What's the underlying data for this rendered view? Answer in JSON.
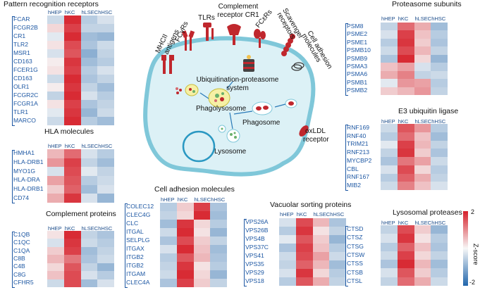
{
  "columns": [
    "hHEP",
    "hKC",
    "hLSEC",
    "hHSC"
  ],
  "panels": [
    {
      "id": "prr",
      "title": "Pattern recognition receptors",
      "genes": [
        "FCAR",
        "FCGR2B",
        "CR1",
        "TLR2",
        "MSR1",
        "CD163",
        "FCER1G",
        "CD163",
        "OLR1",
        "FCGR2C",
        "FCGR1A",
        "TLR1",
        "MARCO"
      ],
      "values": [
        [
          -0.4,
          1.9,
          -0.6,
          -0.3
        ],
        [
          0.3,
          1.7,
          -0.5,
          -0.5
        ],
        [
          -0.2,
          1.9,
          -0.8,
          -0.9
        ],
        [
          0.2,
          1.6,
          -0.7,
          -0.4
        ],
        [
          -0.3,
          1.5,
          -1.0,
          -0.5
        ],
        [
          0.1,
          1.8,
          -0.8,
          -0.6
        ],
        [
          0.2,
          1.7,
          -0.6,
          -0.3
        ],
        [
          -0.4,
          1.9,
          -0.7,
          -0.5
        ],
        [
          0.1,
          1.8,
          -0.5,
          -0.8
        ],
        [
          -0.5,
          1.9,
          -0.3,
          -0.6
        ],
        [
          0.2,
          1.7,
          -0.7,
          -0.5
        ],
        [
          -0.2,
          1.8,
          -0.9,
          -0.4
        ],
        [
          -0.4,
          1.9,
          -0.6,
          -0.8
        ]
      ]
    },
    {
      "id": "hla",
      "title": "HLA molecules",
      "genes": [
        "HMHA1",
        "HLA-DRB1",
        "MYO1G",
        "HLA-DRA",
        "HLA-DRB1",
        "CD74"
      ],
      "values": [
        [
          0.6,
          1.3,
          -0.3,
          -0.6
        ],
        [
          0.9,
          1.7,
          -0.5,
          -0.8
        ],
        [
          -0.3,
          1.6,
          -0.2,
          -0.5
        ],
        [
          0.8,
          1.5,
          -0.6,
          -0.4
        ],
        [
          0.4,
          1.4,
          -0.8,
          -0.3
        ],
        [
          0.7,
          1.8,
          -0.3,
          -0.9
        ]
      ]
    },
    {
      "id": "comp",
      "title": "Complement proteins",
      "genes": [
        "C1QB",
        "C1QC",
        "C1QA",
        "C8B",
        "C4B",
        "C8G",
        "CFHR5"
      ],
      "values": [
        [
          0.2,
          1.9,
          -0.5,
          -0.7
        ],
        [
          -0.3,
          1.8,
          -0.4,
          -0.6
        ],
        [
          0.4,
          1.7,
          -0.8,
          -0.5
        ],
        [
          0.6,
          1.2,
          -0.7,
          -0.4
        ],
        [
          0.3,
          1.5,
          -0.5,
          -0.9
        ],
        [
          0.5,
          1.6,
          -0.3,
          -0.6
        ],
        [
          -0.4,
          1.6,
          -0.8,
          -0.3
        ]
      ]
    },
    {
      "id": "adh",
      "title": "Cell adhesion molecules",
      "genes": [
        "COLEC12",
        "CLEC4G",
        "CLC",
        "ITGAL",
        "SELPLG",
        "ITGAX",
        "ITGB2",
        "ITGB2",
        "ITGAM",
        "CLEC4A"
      ],
      "values": [
        [
          -0.6,
          0.4,
          1.7,
          -0.7
        ],
        [
          -0.5,
          0.3,
          1.9,
          -0.8
        ],
        [
          -0.8,
          1.8,
          0.3,
          -0.6
        ],
        [
          -0.4,
          1.9,
          0.2,
          -0.9
        ],
        [
          -0.7,
          1.6,
          0.4,
          -0.5
        ],
        [
          -0.3,
          1.9,
          0.5,
          -0.8
        ],
        [
          -0.6,
          1.5,
          0.6,
          -0.7
        ],
        [
          -0.5,
          1.8,
          0.2,
          -0.6
        ],
        [
          -0.4,
          1.9,
          0.3,
          -0.9
        ],
        [
          -0.7,
          1.7,
          0.4,
          -0.5
        ]
      ]
    },
    {
      "id": "vps",
      "title": "Vacuolar sorting proteins",
      "genes": [
        "VPS26A",
        "VPS26B",
        "VPS4B",
        "VPS37C",
        "VPS41",
        "VPS35",
        "VPS29",
        "VPS18"
      ],
      "values": [
        [
          -0.3,
          1.6,
          0.6,
          -0.7
        ],
        [
          -0.6,
          1.8,
          0.2,
          -0.5
        ],
        [
          -0.2,
          1.5,
          0.4,
          -0.9
        ],
        [
          -0.7,
          1.7,
          0.5,
          -0.6
        ],
        [
          -0.4,
          1.6,
          0.8,
          -0.4
        ],
        [
          -0.5,
          1.4,
          0.6,
          -0.8
        ],
        [
          -0.3,
          1.8,
          0.3,
          -0.6
        ],
        [
          -0.6,
          1.5,
          0.7,
          -0.5
        ]
      ]
    },
    {
      "id": "prot",
      "title": "Proteasome subunits",
      "genes": [
        "PSM8",
        "PSME2",
        "PSME1",
        "PSMB10",
        "PSMB9",
        "PSMA3",
        "PSMA6",
        "PSMB1",
        "PSMB2"
      ],
      "values": [
        [
          -0.5,
          1.3,
          0.7,
          -0.8
        ],
        [
          -0.3,
          1.7,
          0.5,
          -0.6
        ],
        [
          -0.6,
          1.8,
          0.4,
          -0.7
        ],
        [
          -0.4,
          1.6,
          0.6,
          -0.5
        ],
        [
          -0.7,
          1.9,
          0.3,
          -0.9
        ],
        [
          0.5,
          0.8,
          -0.3,
          -0.6
        ],
        [
          0.7,
          1.1,
          -0.5,
          -0.4
        ],
        [
          -0.2,
          0.9,
          0.8,
          -0.6
        ],
        [
          0.4,
          0.6,
          0.9,
          -0.5
        ]
      ]
    },
    {
      "id": "e3",
      "title": "E3 ubiquitin ligase",
      "genes": [
        "RNF169",
        "RNF40",
        "TRIM21",
        "RNF213",
        "MYCBP2",
        "CBL",
        "RNF167",
        "MIB2"
      ],
      "values": [
        [
          -0.4,
          1.5,
          0.9,
          -0.6
        ],
        [
          -0.6,
          1.3,
          0.5,
          -0.8
        ],
        [
          -0.2,
          1.7,
          0.6,
          -0.5
        ],
        [
          -0.5,
          1.8,
          0.4,
          -0.7
        ],
        [
          -0.7,
          1.2,
          0.8,
          -0.4
        ],
        [
          -0.3,
          1.6,
          0.3,
          -0.6
        ],
        [
          -0.6,
          1.4,
          0.7,
          -0.5
        ],
        [
          -0.4,
          1.1,
          0.5,
          -0.3
        ]
      ]
    },
    {
      "id": "lyso",
      "title": "Lysosomal proteases",
      "genes": [
        "CTSD",
        "CTSZ",
        "CTSG",
        "CTSW",
        "CTSS",
        "CTSB",
        "CTSL"
      ],
      "values": [
        [
          -0.5,
          1.6,
          0.4,
          -0.9
        ],
        [
          -0.3,
          1.8,
          0.2,
          -0.6
        ],
        [
          -0.6,
          1.4,
          0.5,
          -0.7
        ],
        [
          -0.4,
          1.7,
          0.3,
          -0.5
        ],
        [
          -0.7,
          1.9,
          0.6,
          -0.8
        ],
        [
          -0.3,
          1.5,
          0.4,
          -0.6
        ],
        [
          -0.5,
          1.3,
          0.7,
          -0.4
        ]
      ]
    }
  ],
  "diagram": {
    "receptors": [
      "TLRs",
      "FCγRs",
      "Complement receptor CR1",
      "FCεRs",
      "Scavenger receptors",
      "Cell adhesion molecules",
      "MHCII antigens",
      "oxLDL receptor"
    ],
    "labels": [
      "Ubiquitination-proteasome system",
      "Phagolysosome",
      "Phagosome",
      "Lysosome"
    ]
  },
  "scale": {
    "max": "2",
    "min": "-2",
    "label": "Z-score"
  },
  "colors": {
    "low": "#2166ac",
    "mid": "#f7f7f7",
    "high": "#d6202a",
    "gene_text": "#1d57a3",
    "cell_fill": "#dcf1f6",
    "cell_edge": "#7fc7d9",
    "red_receptor": "#c0272d"
  }
}
